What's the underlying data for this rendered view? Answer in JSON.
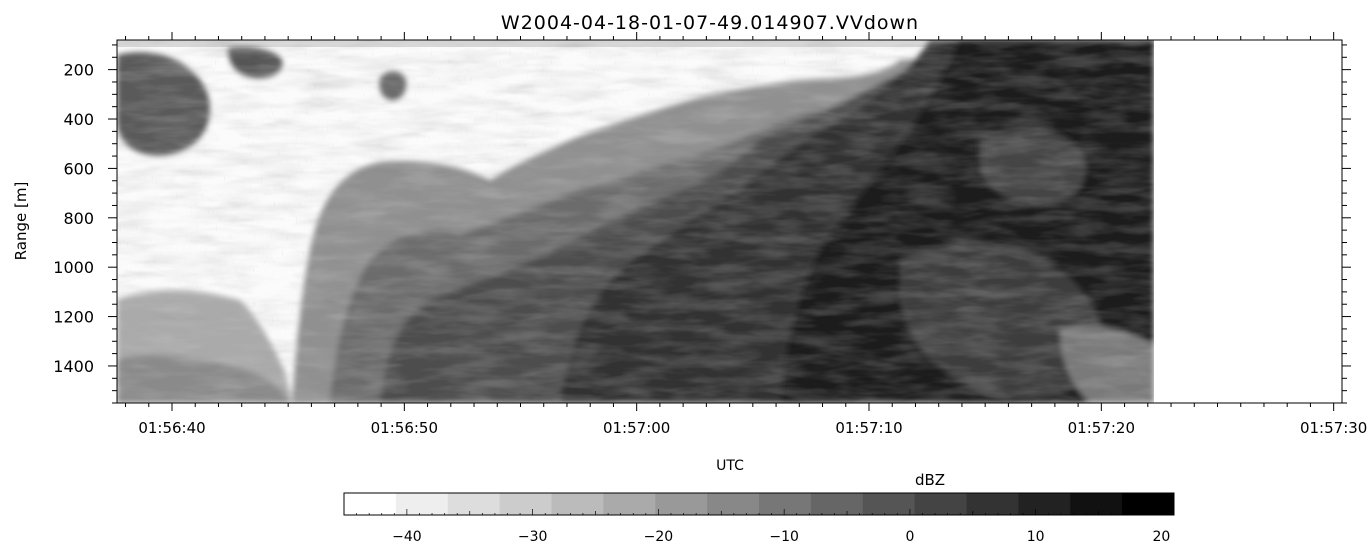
{
  "chart_data": {
    "type": "heatmap",
    "title": "W2004-04-18-01-07-49.014907.VVdown",
    "xlabel": "UTC",
    "ylabel": "Range [m]",
    "x_ticks": [
      "01:56:40",
      "01:56:50",
      "01:57:00",
      "01:57:10",
      "01:57:20",
      "01:57:30"
    ],
    "y_ticks": [
      "200",
      "400",
      "600",
      "800",
      "1000",
      "1200",
      "1400"
    ],
    "y_range": [
      80,
      1550
    ],
    "data_end_time": "01:57:23",
    "colorbar": {
      "label": "dBZ",
      "ticks": [
        "-40",
        "-30",
        "-20",
        "-10",
        "0",
        "10",
        "20"
      ],
      "range": [
        -45,
        21
      ],
      "levels": 16,
      "color_low": "#ffffff",
      "color_high": "#000000"
    }
  }
}
